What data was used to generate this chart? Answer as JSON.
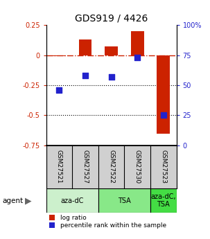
{
  "title": "GDS919 / 4426",
  "samples": [
    "GSM27521",
    "GSM27527",
    "GSM27522",
    "GSM27530",
    "GSM27523"
  ],
  "log_ratios": [
    -0.01,
    0.13,
    0.07,
    0.2,
    -0.65
  ],
  "percentile_ranks": [
    46,
    58,
    57,
    73,
    25
  ],
  "agents": [
    {
      "label": "aza-dC",
      "span": [
        0,
        2
      ],
      "color": "#ccf0cc"
    },
    {
      "label": "TSA",
      "span": [
        2,
        4
      ],
      "color": "#88e888"
    },
    {
      "label": "aza-dC,\nTSA",
      "span": [
        4,
        5
      ],
      "color": "#44dd44"
    }
  ],
  "bar_color": "#cc2200",
  "dot_color": "#2222cc",
  "ref_line_color": "#cc2200",
  "ylim_left": [
    -0.75,
    0.25
  ],
  "ylim_right": [
    0,
    100
  ],
  "yticks_left": [
    -0.75,
    -0.5,
    -0.25,
    0,
    0.25
  ],
  "yticks_right": [
    0,
    25,
    50,
    75,
    100
  ],
  "dotted_lines": [
    -0.25,
    -0.5
  ],
  "background_color": "#ffffff",
  "label_bg": "#d0d0d0"
}
